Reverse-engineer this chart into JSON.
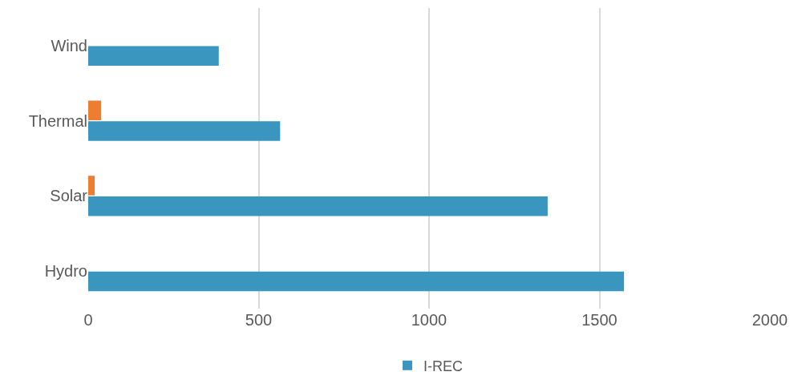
{
  "chart_data": {
    "type": "bar",
    "orientation": "horizontal",
    "categories": [
      "Wind",
      "Thermal",
      "Solar",
      "Hydro"
    ],
    "series": [
      {
        "color": "#ed7d31",
        "values": [
          null,
          38,
          19,
          null
        ]
      },
      {
        "name": "I-REC",
        "color": "#3a96be",
        "values": [
          383,
          563,
          1348,
          1572
        ]
      }
    ],
    "xlim": [
      0,
      2000
    ],
    "xticks": [
      0,
      500,
      1000,
      1500,
      2000
    ],
    "grid": "x",
    "legend": "bottom"
  }
}
